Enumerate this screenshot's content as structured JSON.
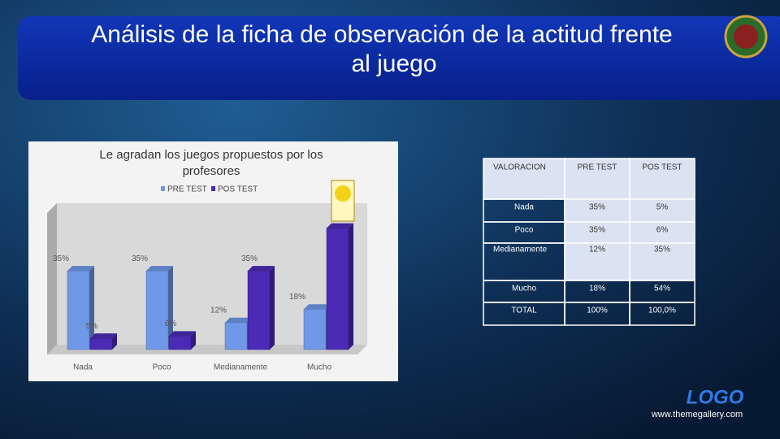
{
  "header": {
    "title": "Análisis de la ficha de observación de la actitud frente al juego"
  },
  "chart_data": {
    "type": "bar",
    "title": "Le agradan los juegos propuestos por los profesores",
    "categories": [
      "Nada",
      "Poco",
      "Medianamente",
      "Mucho"
    ],
    "series": [
      {
        "name": "PRE TEST",
        "color": "#6f98e8",
        "values": [
          35,
          35,
          12,
          18
        ],
        "value_labels": [
          "35%",
          "35%",
          "12%",
          "18%"
        ]
      },
      {
        "name": "POS TEST",
        "color": "#4b2ab5",
        "values": [
          5,
          6,
          35,
          54
        ],
        "value_labels": [
          "5%",
          "6%",
          "35%",
          null
        ]
      }
    ],
    "ylim": [
      0,
      60
    ],
    "legend": "top"
  },
  "table": {
    "header": [
      "VALORACION",
      "PRE TEST",
      "POS TEST"
    ],
    "rows": [
      [
        "Nada",
        "35%",
        "5%"
      ],
      [
        "Poco",
        "35%",
        "6%"
      ],
      [
        "Medianamente",
        "12%",
        "35%"
      ],
      [
        "Mucho",
        "18%",
        "54%"
      ],
      [
        "TOTAL",
        "100%",
        "100,0%"
      ]
    ]
  },
  "footer": {
    "logo": "LOGO",
    "url": "www.themegallery.com"
  }
}
